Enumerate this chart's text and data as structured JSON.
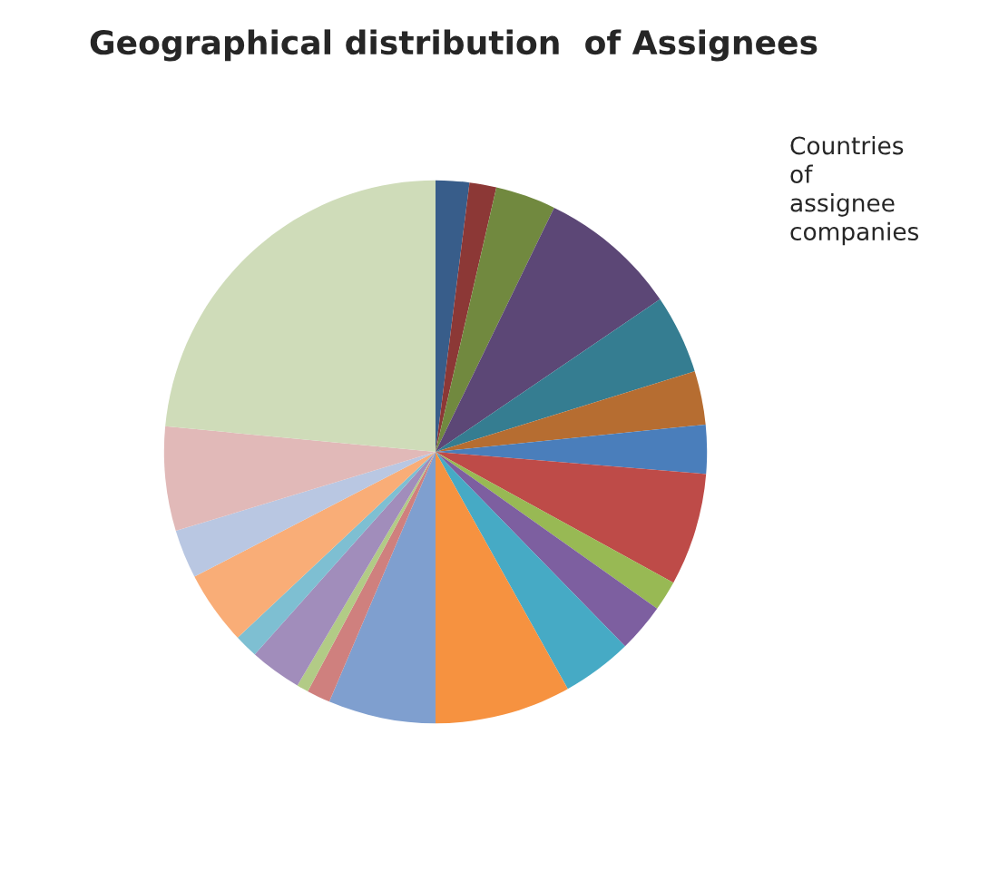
{
  "chart_data": {
    "type": "pie",
    "title": "Geographical distribution  of Assignees",
    "legend_title": "Countries of assignee companies",
    "categories": [
      null,
      null,
      null,
      null,
      null,
      null,
      null,
      null,
      null,
      null,
      null,
      null,
      null,
      null,
      null,
      null,
      null,
      null,
      null,
      null,
      null
    ],
    "values": [
      2,
      1.6,
      3.6,
      8.3,
      4.7,
      3.2,
      2.9,
      6.7,
      1.8,
      2.9,
      4.2,
      8.1,
      6.4,
      1.4,
      0.7,
      3.1,
      1.4,
      4.4,
      2.9,
      6.2,
      23.5
    ],
    "colors": [
      "#385d8a",
      "#8c3836",
      "#71893f",
      "#5c4776",
      "#357d91",
      "#b66d31",
      "#4a7ebb",
      "#be4b48",
      "#98b954",
      "#7d5fa0",
      "#46aac5",
      "#f69240",
      "#7f9fcf",
      "#cf807e",
      "#b2cb86",
      "#a18dbb",
      "#7ebfd2",
      "#f9ad77",
      "#b9c7e2",
      "#e1b9b8",
      "#cfdcb9"
    ]
  }
}
